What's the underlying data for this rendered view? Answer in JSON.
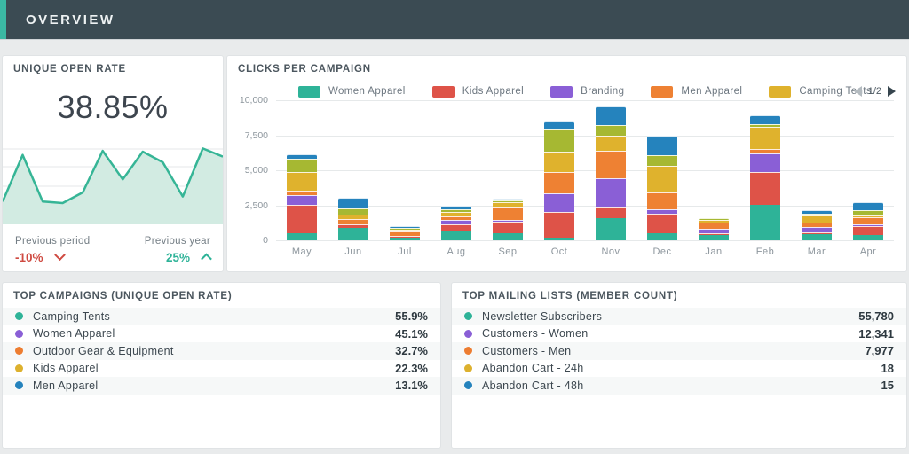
{
  "header": {
    "title": "OVERVIEW"
  },
  "colors": {
    "accent_teal": "#3bb8a3",
    "header_bg": "#3b4b53",
    "negative_red": "#cf4a41",
    "positive_green": "#2eb398",
    "card_background": "#ffffff",
    "page_background": "#e9ebec"
  },
  "open_rate_card": {
    "title": "UNIQUE OPEN RATE",
    "value": "38.85%",
    "previous_period_label": "Previous period",
    "previous_period_value": "-10%",
    "previous_period_direction": "down",
    "previous_year_label": "Previous year",
    "previous_year_value": "25%",
    "previous_year_direction": "up"
  },
  "clicks_card": {
    "title": "CLICKS PER CAMPAIGN",
    "pagination": "1/2",
    "y_ticks": [
      "10,000",
      "7,500",
      "5,000",
      "2,500",
      "0"
    ]
  },
  "top_campaigns": {
    "title": "TOP CAMPAIGNS (UNIQUE OPEN RATE)",
    "items": [
      {
        "label": "Camping Tents",
        "value": "55.9%",
        "color": "#2eb398"
      },
      {
        "label": "Women Apparel",
        "value": "45.1%",
        "color": "#8a5fd6"
      },
      {
        "label": "Outdoor Gear & Equipment",
        "value": "32.7%",
        "color": "#ed7d31"
      },
      {
        "label": "Kids Apparel",
        "value": "22.3%",
        "color": "#ddb12e"
      },
      {
        "label": "Men Apparel",
        "value": "13.1%",
        "color": "#2583bd"
      }
    ]
  },
  "top_mailing_lists": {
    "title": "TOP MAILING LISTS (MEMBER COUNT)",
    "items": [
      {
        "label": "Newsletter Subscribers",
        "value": "55,780",
        "color": "#2eb398"
      },
      {
        "label": "Customers - Women",
        "value": "12,341",
        "color": "#8a5fd6"
      },
      {
        "label": "Customers - Men",
        "value": "7,977",
        "color": "#ed7d31"
      },
      {
        "label": "Abandon Cart - 24h",
        "value": "18",
        "color": "#ddb12e"
      },
      {
        "label": "Abandon Cart - 48h",
        "value": "15",
        "color": "#2583bd"
      }
    ]
  },
  "chart_data": [
    {
      "type": "area",
      "title": "Unique open rate trend (sparkline, axes unlabeled)",
      "x": [
        1,
        2,
        3,
        4,
        5,
        6,
        7,
        8,
        9,
        10,
        11,
        12
      ],
      "values": [
        27,
        84,
        27,
        25,
        38,
        89,
        54,
        88,
        75,
        33,
        92,
        82
      ],
      "ylim": [
        0,
        100
      ],
      "line_color": "#36b596",
      "fill_color": "#d2ebe2",
      "grid": true,
      "legend_position": "none"
    },
    {
      "type": "bar",
      "stacked": true,
      "title": "CLICKS PER CAMPAIGN",
      "categories": [
        "May",
        "Jun",
        "Jul",
        "Aug",
        "Sep",
        "Oct",
        "Nov",
        "Dec",
        "Jan",
        "Feb",
        "Mar",
        "Apr"
      ],
      "series": [
        {
          "name": "Women Apparel",
          "color": "#2eb398",
          "in_legend": true,
          "values": [
            500,
            900,
            200,
            650,
            500,
            200,
            1600,
            500,
            400,
            2500,
            450,
            350
          ]
        },
        {
          "name": "Kids Apparel",
          "color": "#de5348",
          "in_legend": true,
          "values": [
            2050,
            250,
            150,
            500,
            850,
            1850,
            750,
            1400,
            100,
            2350,
            100,
            650
          ]
        },
        {
          "name": "Branding",
          "color": "#8a5fd6",
          "in_legend": true,
          "values": [
            700,
            0,
            0,
            300,
            100,
            1300,
            2100,
            300,
            300,
            1300,
            350,
            100
          ]
        },
        {
          "name": "Men Apparel",
          "color": "#ee8133",
          "in_legend": true,
          "values": [
            300,
            400,
            300,
            250,
            900,
            1550,
            1950,
            1200,
            450,
            300,
            300,
            500
          ]
        },
        {
          "name": "Camping Tents",
          "color": "#dfb22d",
          "in_legend": true,
          "values": [
            1300,
            320,
            50,
            300,
            400,
            1450,
            1050,
            1900,
            200,
            1600,
            500,
            150
          ]
        },
        {
          "name": "Unlabeled series (olive, legend page 2)",
          "color": "#a6b832",
          "in_legend": false,
          "values": [
            950,
            450,
            50,
            200,
            150,
            1600,
            750,
            750,
            150,
            200,
            100,
            350
          ]
        },
        {
          "name": "Unlabeled series (blue, legend page 2)",
          "color": "#2583bd",
          "in_legend": false,
          "values": [
            300,
            730,
            50,
            250,
            150,
            550,
            1350,
            1400,
            0,
            650,
            250,
            550
          ]
        }
      ],
      "ylim": [
        0,
        10000
      ],
      "y_ticks": [
        0,
        2500,
        5000,
        7500,
        10000
      ],
      "legend_position": "top",
      "grid": true
    }
  ]
}
